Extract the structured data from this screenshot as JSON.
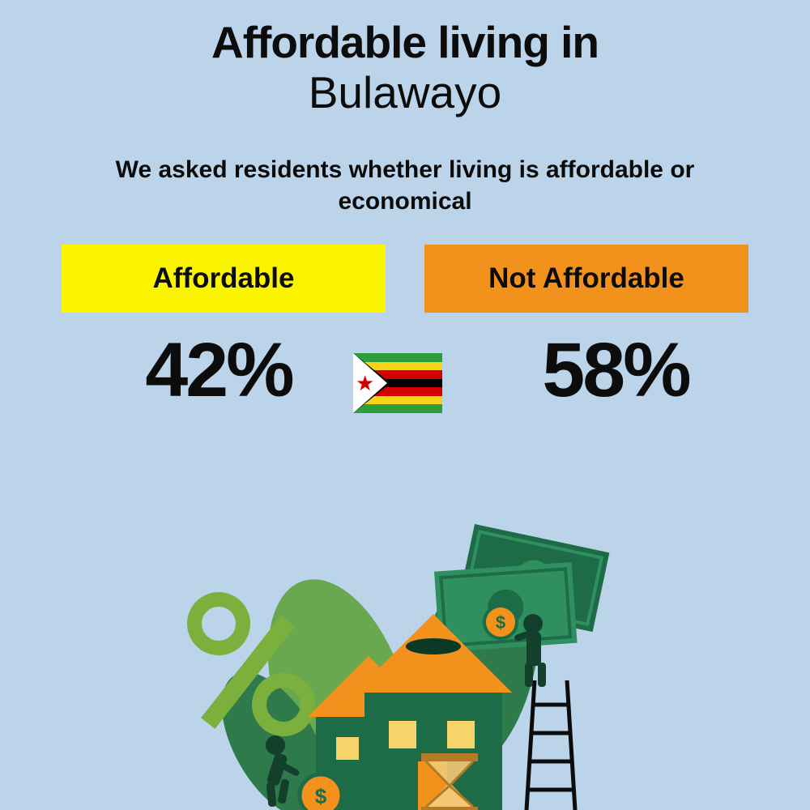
{
  "background_color": "#bcd4ea",
  "text_color": "#0c0c0c",
  "title": {
    "line1": "Affordable living in",
    "line2": "Bulawayo",
    "line1_fontsize": 55,
    "line1_weight": 900,
    "line2_fontsize": 55,
    "line2_weight": 400
  },
  "subtitle": {
    "text": "We asked residents whether living is affordable or economical",
    "fontsize": 30,
    "weight": 900
  },
  "options": {
    "left": {
      "label": "Affordable",
      "bg_color": "#faf400",
      "text_color": "#0c0c0c",
      "value": "42%"
    },
    "right": {
      "label": "Not Affordable",
      "bg_color": "#f2921d",
      "text_color": "#0c0c0c",
      "value": "58%"
    },
    "label_fontsize": 35,
    "value_fontsize": 95,
    "value_weight": 900
  },
  "flag": {
    "country": "Zimbabwe",
    "stripes": [
      "#2e9e3a",
      "#f7d417",
      "#d40000",
      "#000000",
      "#d40000",
      "#f7d417",
      "#2e9e3a"
    ],
    "triangle_color": "#ffffff",
    "triangle_border": "#000000",
    "star_color": "#d40000",
    "bird_color": "#e6c200"
  },
  "illustration": {
    "percent_color": "#7bb03c",
    "leaf_colors": [
      "#2f7a4a",
      "#6aa84f"
    ],
    "bill_colors": [
      "#1e6b47",
      "#2f8f5f"
    ],
    "house_wall": "#1e6b47",
    "house_roof": "#f2921d",
    "house_window": "#f7d46a",
    "hourglass_frame": "#b57a24",
    "hourglass_sand": "#f2c877",
    "coin_fill": "#f2921d",
    "coin_stroke": "#1e6b47",
    "person_color": "#13402c",
    "ladder_color": "#0c0c0c"
  }
}
